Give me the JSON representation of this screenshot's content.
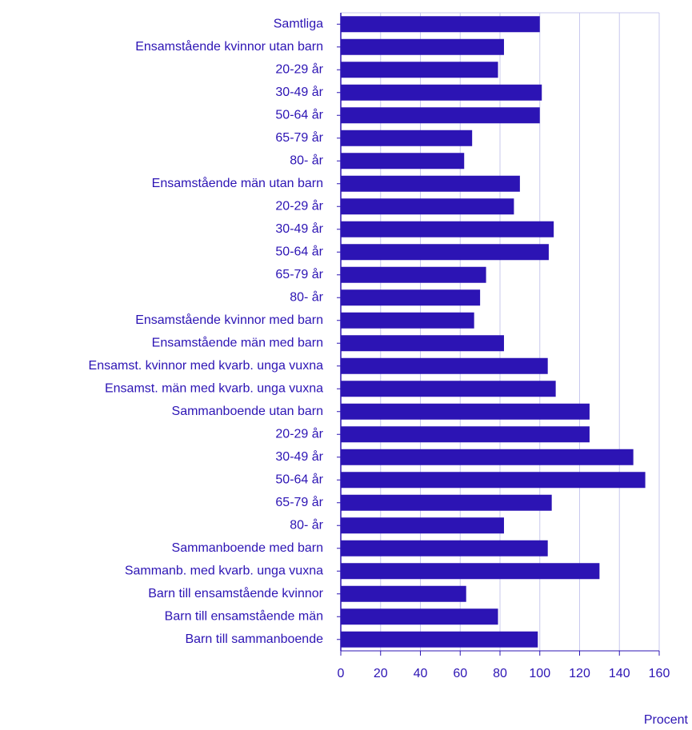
{
  "chart_data": {
    "type": "barh",
    "categories": [
      "Samtliga",
      "Ensamstående kvinnor utan barn",
      "20-29 år",
      "30-49 år",
      "50-64 år",
      "65-79 år",
      "80- år",
      "Ensamstående män utan barn",
      "20-29 år",
      "30-49 år",
      "50-64 år",
      "65-79 år",
      "80- år",
      "Ensamstående kvinnor med barn",
      "Ensamstående män med barn",
      "Ensamst. kvinnor med kvarb. unga vuxna",
      "Ensamst. män med kvarb. unga vuxna",
      "Sammanboende utan barn",
      "20-29 år",
      "30-49 år",
      "50-64 år",
      "65-79 år",
      "80- år",
      "Sammanboende med barn",
      "Sammanb. med kvarb. unga vuxna",
      "Barn till ensamstående kvinnor",
      "Barn till ensamstående män",
      "Barn till sammanboende"
    ],
    "values": [
      100,
      82,
      79,
      101,
      100,
      66,
      62,
      90,
      87,
      107,
      104.5,
      73,
      70,
      67,
      82,
      104,
      108,
      125,
      125,
      147,
      153,
      106,
      82,
      104,
      130,
      63,
      79,
      99
    ],
    "color": "#2c14b4",
    "xlim": [
      0,
      160
    ],
    "xticks": [
      0,
      20,
      40,
      60,
      80,
      100,
      120,
      140,
      160
    ],
    "xlabel": "Procent",
    "grid": true
  }
}
